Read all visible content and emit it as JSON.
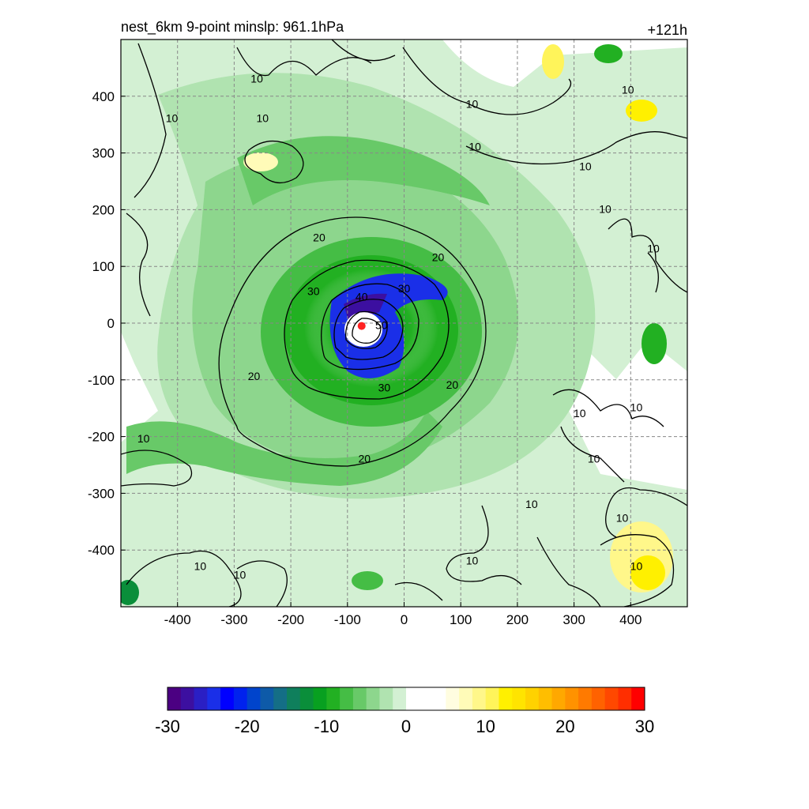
{
  "chart_data": {
    "type": "heatmap",
    "title": "nest_6km  9-point minslp: 961.1hPa",
    "forecast_hour_label": "+121h",
    "xlabel": "",
    "ylabel": "",
    "xlim": [
      -500,
      500
    ],
    "ylim": [
      -500,
      500
    ],
    "x_ticks": [
      -400,
      -300,
      -200,
      -100,
      0,
      100,
      200,
      300,
      400
    ],
    "y_ticks": [
      400,
      300,
      200,
      100,
      0,
      -100,
      -200,
      -300,
      -400
    ],
    "grid": true,
    "center_marker": {
      "x": -75,
      "y": -5,
      "color": "#ff2222"
    },
    "contour_line_values": [
      10,
      20,
      30,
      40,
      50
    ],
    "contour_labels": [
      {
        "text": "10",
        "x": -250,
        "y": 360
      },
      {
        "text": "10",
        "x": -410,
        "y": 360
      },
      {
        "text": "10",
        "x": -260,
        "y": 430
      },
      {
        "text": "10",
        "x": 120,
        "y": 385
      },
      {
        "text": "10",
        "x": 125,
        "y": 310
      },
      {
        "text": "10",
        "x": 320,
        "y": 275
      },
      {
        "text": "10",
        "x": 395,
        "y": 410
      },
      {
        "text": "10",
        "x": 355,
        "y": 200
      },
      {
        "text": "10",
        "x": 440,
        "y": 130
      },
      {
        "text": "10",
        "x": 310,
        "y": -160
      },
      {
        "text": "10",
        "x": 410,
        "y": -150
      },
      {
        "text": "10",
        "x": 335,
        "y": -240
      },
      {
        "text": "10",
        "x": 225,
        "y": -320
      },
      {
        "text": "10",
        "x": 385,
        "y": -345
      },
      {
        "text": "10",
        "x": 410,
        "y": -430
      },
      {
        "text": "10",
        "x": -460,
        "y": -205
      },
      {
        "text": "10",
        "x": -360,
        "y": -430
      },
      {
        "text": "10",
        "x": -290,
        "y": -445
      },
      {
        "text": "10",
        "x": 120,
        "y": -420
      },
      {
        "text": "20",
        "x": -150,
        "y": 150
      },
      {
        "text": "20",
        "x": 60,
        "y": 115
      },
      {
        "text": "20",
        "x": -265,
        "y": -95
      },
      {
        "text": "20",
        "x": 85,
        "y": -110
      },
      {
        "text": "20",
        "x": -70,
        "y": -240
      },
      {
        "text": "30",
        "x": -160,
        "y": 55
      },
      {
        "text": "30",
        "x": 0,
        "y": 60
      },
      {
        "text": "30",
        "x": -35,
        "y": -115
      },
      {
        "text": "40",
        "x": -75,
        "y": 45
      },
      {
        "text": "50",
        "x": -40,
        "y": -5
      }
    ],
    "colorbar": {
      "min": -30,
      "max": 30,
      "tick_labels": [
        "-30",
        "-20",
        "-10",
        "0",
        "10",
        "20",
        "30"
      ],
      "colors": [
        "#4b0082",
        "#3c0fa0",
        "#2a1fc4",
        "#1a2fe8",
        "#0000ff",
        "#0022ee",
        "#0044cc",
        "#0e5aa8",
        "#146e86",
        "#0f7f5c",
        "#0a8e3a",
        "#08a020",
        "#22b022",
        "#45bd45",
        "#68c968",
        "#8dd68d",
        "#b0e3b0",
        "#d3f0d3",
        "#ffffff",
        "#ffffff",
        "#ffffff",
        "#fffde0",
        "#fffbb8",
        "#fff78a",
        "#fff45a",
        "#fff000",
        "#ffe400",
        "#ffd200",
        "#ffbe00",
        "#ffa800",
        "#ff9200",
        "#ff7a00",
        "#ff6200",
        "#ff4800",
        "#ff2e00",
        "#ff0000"
      ]
    }
  }
}
